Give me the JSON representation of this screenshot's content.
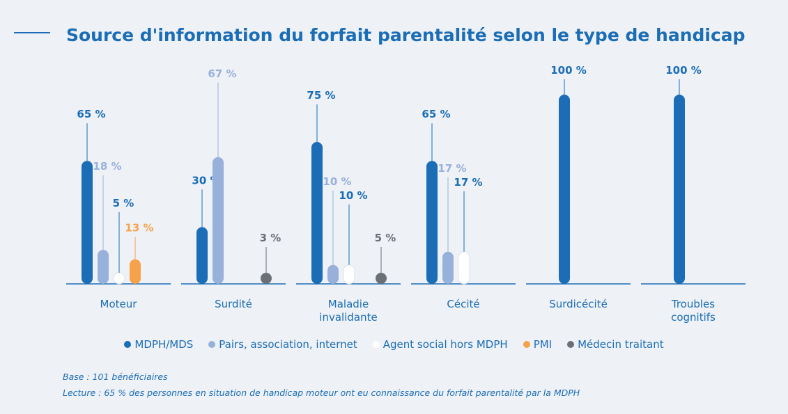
{
  "chart_data": {
    "type": "bar",
    "title": "Source d'information du forfait parentalité selon le type de handicap",
    "categories": [
      "Moteur",
      "Surdité",
      "Maladie invalidante",
      "Cécité",
      "Surdicécité",
      "Troubles cognitifs"
    ],
    "series": [
      {
        "name": "MDPH/MDS",
        "color": "#1b6db5",
        "values": [
          65,
          30,
          75,
          65,
          100,
          100
        ],
        "value_labels": [
          "65 %",
          "30 %",
          "75 %",
          "65 %",
          "100 %",
          "100 %"
        ]
      },
      {
        "name": "Pairs, association, internet",
        "color": "#98b1da",
        "values": [
          18,
          67,
          10,
          17,
          null,
          null
        ],
        "value_labels": [
          "18 %",
          "67 %",
          "10 %",
          "17 %",
          null,
          null
        ]
      },
      {
        "name": "Agent social hors MDPH",
        "color": "#ffffff",
        "label_color": "#1b6db5",
        "values": [
          5,
          null,
          10,
          17,
          null,
          null
        ],
        "value_labels": [
          "5 %",
          null,
          "10 %",
          "17 %",
          null,
          null
        ]
      },
      {
        "name": "PMI",
        "color": "#f5a24b",
        "values": [
          13,
          null,
          null,
          null,
          null,
          null
        ],
        "value_labels": [
          "13 %",
          null,
          null,
          null,
          null,
          null
        ]
      },
      {
        "name": "Médecin traitant",
        "color": "#6b7077",
        "values": [
          null,
          3,
          5,
          null,
          null,
          null
        ],
        "value_labels": [
          null,
          "3 %",
          "5 %",
          null,
          null,
          null
        ]
      }
    ],
    "notes": [
      "Base : 101 bénéficiaires",
      "Lecture : 65 % des personnes en situation de handicap moteur ont eu connaissance du forfait parentalité par la MDPH"
    ]
  }
}
